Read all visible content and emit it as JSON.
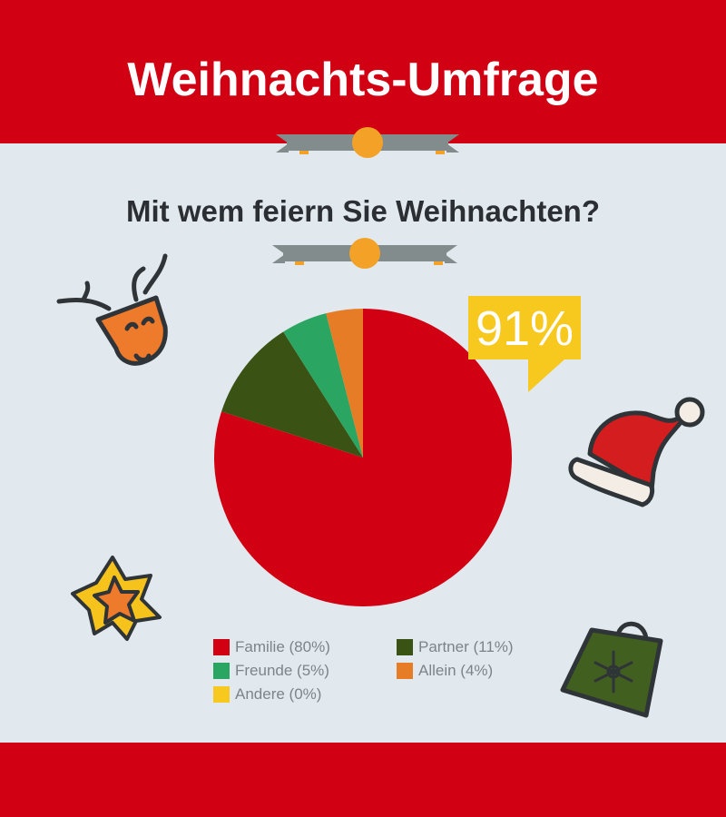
{
  "header": {
    "title": "Weihnachts-Umfrage"
  },
  "question": {
    "text": "Mit wem feiern Sie Weihnachten?"
  },
  "callout": {
    "value": "91%",
    "color": "#f7c81e"
  },
  "colors": {
    "band": "#d10013",
    "background": "#e2e9ee",
    "ribbon": "#838c8c",
    "ribbon_knot": "#f3a227"
  },
  "icons": [
    "reindeer-icon",
    "santa-hat-icon",
    "star-icon",
    "shopping-bag-icon"
  ],
  "chart_data": {
    "type": "pie",
    "title": "Mit wem feiern Sie Weihnachten?",
    "slices": [
      {
        "label": "Familie (80%)",
        "value": 80,
        "color": "#d10013"
      },
      {
        "label": "Partner (11%)",
        "value": 11,
        "color": "#3a5314"
      },
      {
        "label": "Freunde (5%)",
        "value": 5,
        "color": "#2aa562"
      },
      {
        "label": "Allein (4%)",
        "value": 4,
        "color": "#e67c25"
      },
      {
        "label": "Andere (0%)",
        "value": 0,
        "color": "#f7c81e"
      }
    ],
    "legend_position": "bottom"
  }
}
